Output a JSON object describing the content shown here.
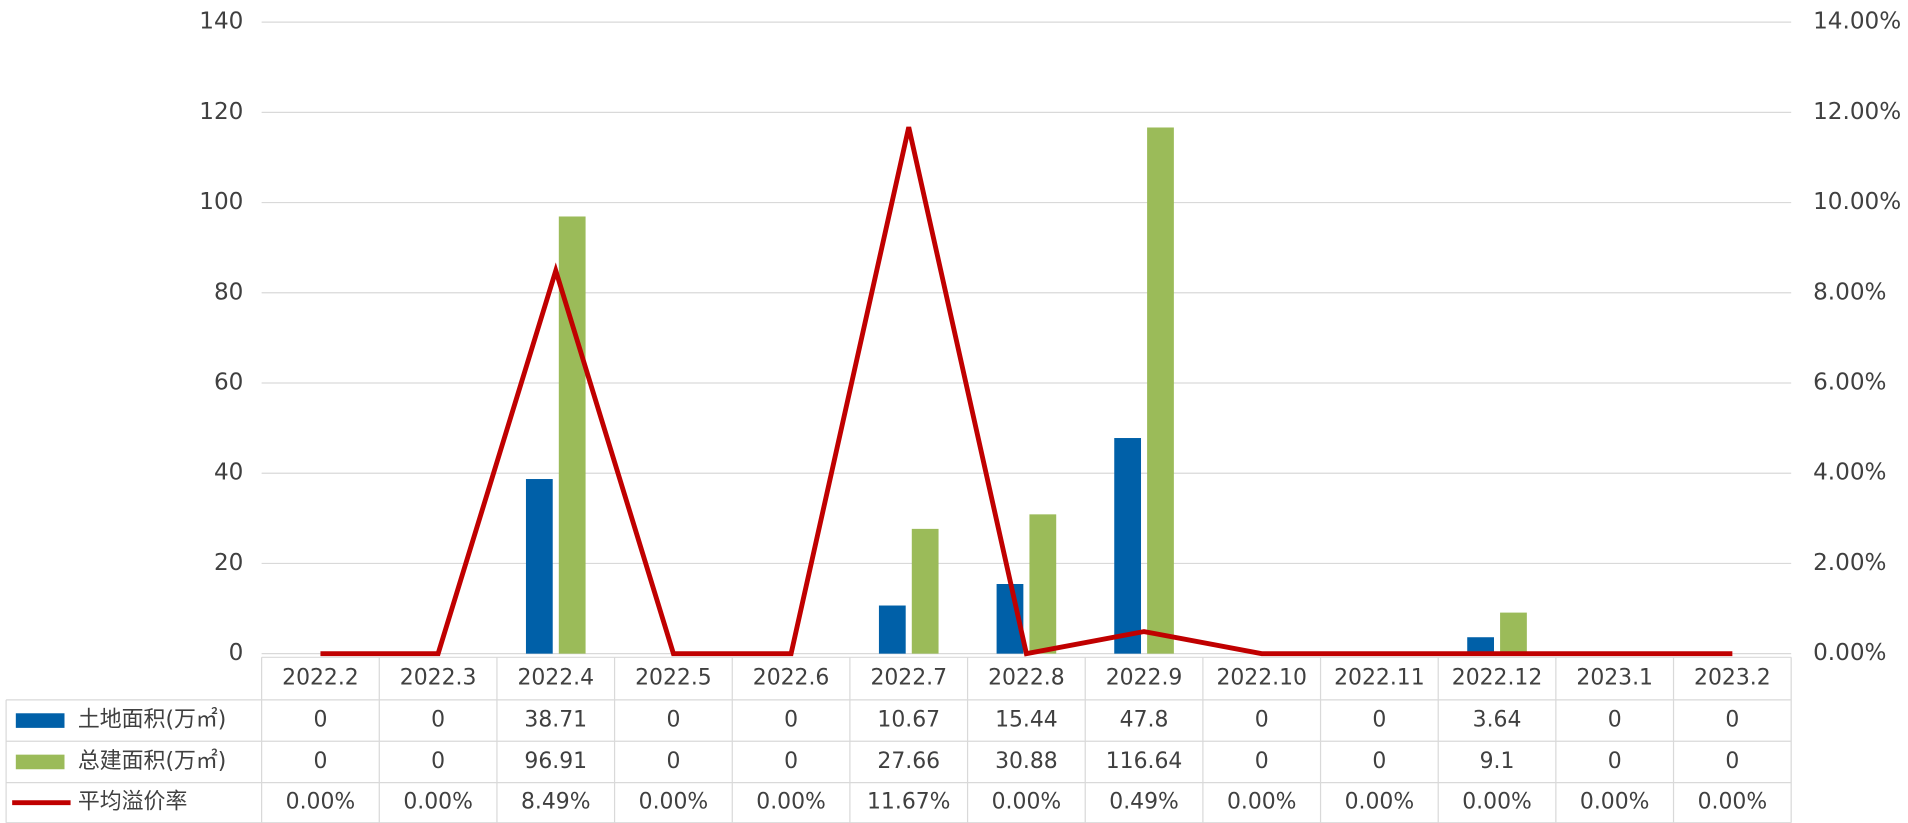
{
  "chart_data": {
    "type": "bar",
    "categories": [
      "2022.2",
      "2022.3",
      "2022.4",
      "2022.5",
      "2022.6",
      "2022.7",
      "2022.8",
      "2022.9",
      "2022.10",
      "2022.11",
      "2022.12",
      "2023.1",
      "2023.2"
    ],
    "series": [
      {
        "name": "土地面积(万㎡)",
        "color": "#0060a8",
        "values": [
          0,
          0,
          38.71,
          0,
          0,
          10.67,
          15.44,
          47.8,
          0,
          0,
          3.64,
          0,
          0
        ]
      },
      {
        "name": "总建面积(万㎡)",
        "color": "#9bbb59",
        "values": [
          0,
          0,
          96.91,
          0,
          0,
          27.66,
          30.88,
          116.64,
          0,
          0,
          9.1,
          0,
          0
        ]
      },
      {
        "name": "平均溢价率",
        "color": "#c00000",
        "type": "line",
        "axis": "y2",
        "values": [
          0,
          0,
          8.49,
          0,
          0,
          11.67,
          0,
          0.49,
          0,
          0,
          0,
          0,
          0
        ],
        "value_labels": [
          "0.00%",
          "0.00%",
          "8.49%",
          "0.00%",
          "0.00%",
          "11.67%",
          "0.00%",
          "0.49%",
          "0.00%",
          "0.00%",
          "0.00%",
          "0.00%",
          "0.00%"
        ]
      }
    ],
    "ylim": [
      0,
      140
    ],
    "yticks": [
      0,
      20,
      40,
      60,
      80,
      100,
      120,
      140
    ],
    "y2lim": [
      0,
      14
    ],
    "y2ticks": [
      {
        "value": 0,
        "label": "0.00%"
      },
      {
        "value": 2,
        "label": "2.00%"
      },
      {
        "value": 4,
        "label": "4.00%"
      },
      {
        "value": 6,
        "label": "6.00%"
      },
      {
        "value": 8,
        "label": "8.00%"
      },
      {
        "value": 10,
        "label": "10.00%"
      },
      {
        "value": 12,
        "label": "12.00%"
      },
      {
        "value": 14,
        "label": "14.00%"
      }
    ],
    "grid": true,
    "legend": "bottom"
  }
}
